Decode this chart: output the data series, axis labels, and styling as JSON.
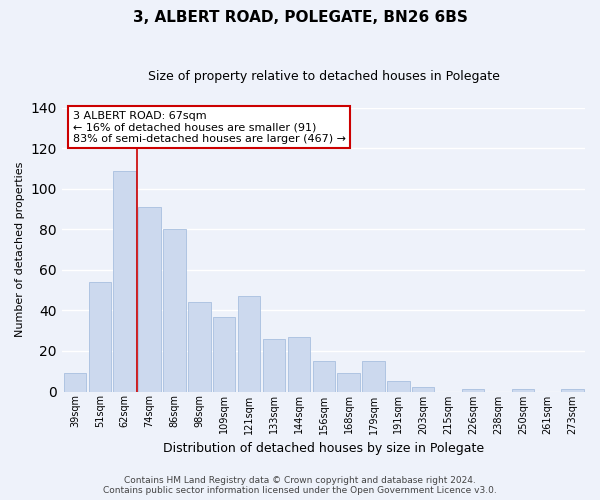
{
  "title": "3, ALBERT ROAD, POLEGATE, BN26 6BS",
  "subtitle": "Size of property relative to detached houses in Polegate",
  "xlabel": "Distribution of detached houses by size in Polegate",
  "ylabel": "Number of detached properties",
  "bar_labels": [
    "39sqm",
    "51sqm",
    "62sqm",
    "74sqm",
    "86sqm",
    "98sqm",
    "109sqm",
    "121sqm",
    "133sqm",
    "144sqm",
    "156sqm",
    "168sqm",
    "179sqm",
    "191sqm",
    "203sqm",
    "215sqm",
    "226sqm",
    "238sqm",
    "250sqm",
    "261sqm",
    "273sqm"
  ],
  "bar_values": [
    9,
    54,
    109,
    91,
    80,
    44,
    37,
    47,
    26,
    27,
    15,
    9,
    15,
    5,
    2,
    0,
    1,
    0,
    1,
    0,
    1
  ],
  "bar_color": "#ccd9ee",
  "bar_edge_color": "#a8bfdf",
  "vline_color": "#cc0000",
  "vline_pos": 2.5,
  "ylim": [
    0,
    140
  ],
  "yticks": [
    0,
    20,
    40,
    60,
    80,
    100,
    120,
    140
  ],
  "annotation_title": "3 ALBERT ROAD: 67sqm",
  "annotation_line1": "← 16% of detached houses are smaller (91)",
  "annotation_line2": "83% of semi-detached houses are larger (467) →",
  "footer_line1": "Contains HM Land Registry data © Crown copyright and database right 2024.",
  "footer_line2": "Contains public sector information licensed under the Open Government Licence v3.0.",
  "bg_color": "#eef2fa",
  "plot_bg_color": "#eef2fa",
  "grid_color": "#ffffff",
  "title_fontsize": 11,
  "subtitle_fontsize": 9,
  "ylabel_fontsize": 8,
  "xlabel_fontsize": 9,
  "tick_fontsize": 7,
  "footer_fontsize": 6.5,
  "ann_fontsize": 8
}
